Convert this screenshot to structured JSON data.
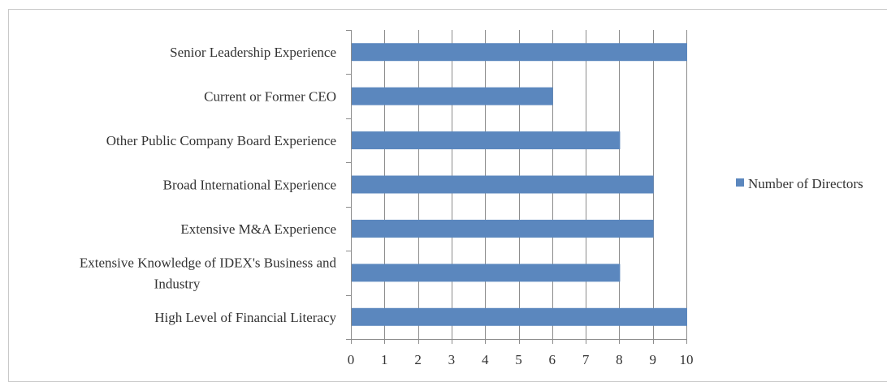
{
  "chart_data": {
    "type": "bar",
    "orientation": "horizontal",
    "categories": [
      "Senior Leadership Experience",
      "Current or Former CEO",
      "Other Public Company Board Experience",
      "Broad International Experience",
      "Extensive M&A Experience",
      "Extensive Knowledge of IDEX's Business and Industry",
      "High Level of Financial Literacy"
    ],
    "category_label_lines": [
      [
        "Senior Leadership Experience"
      ],
      [
        "Current or Former CEO"
      ],
      [
        "Other Public Company Board Experience"
      ],
      [
        "Broad International Experience"
      ],
      [
        "Extensive M&A Experience"
      ],
      [
        "Extensive Knowledge of IDEX's Business and",
        "Industry"
      ],
      [
        "High Level of Financial Literacy"
      ]
    ],
    "series": [
      {
        "name": "Number of Directors",
        "values": [
          10,
          6,
          8,
          9,
          9,
          8,
          10
        ],
        "color": "#5b87be"
      }
    ],
    "xlim": [
      0,
      10
    ],
    "x_ticks": [
      0,
      1,
      2,
      3,
      4,
      5,
      6,
      7,
      8,
      9,
      10
    ],
    "grid": true,
    "legend": "right",
    "title": "",
    "xlabel": "",
    "ylabel": ""
  }
}
